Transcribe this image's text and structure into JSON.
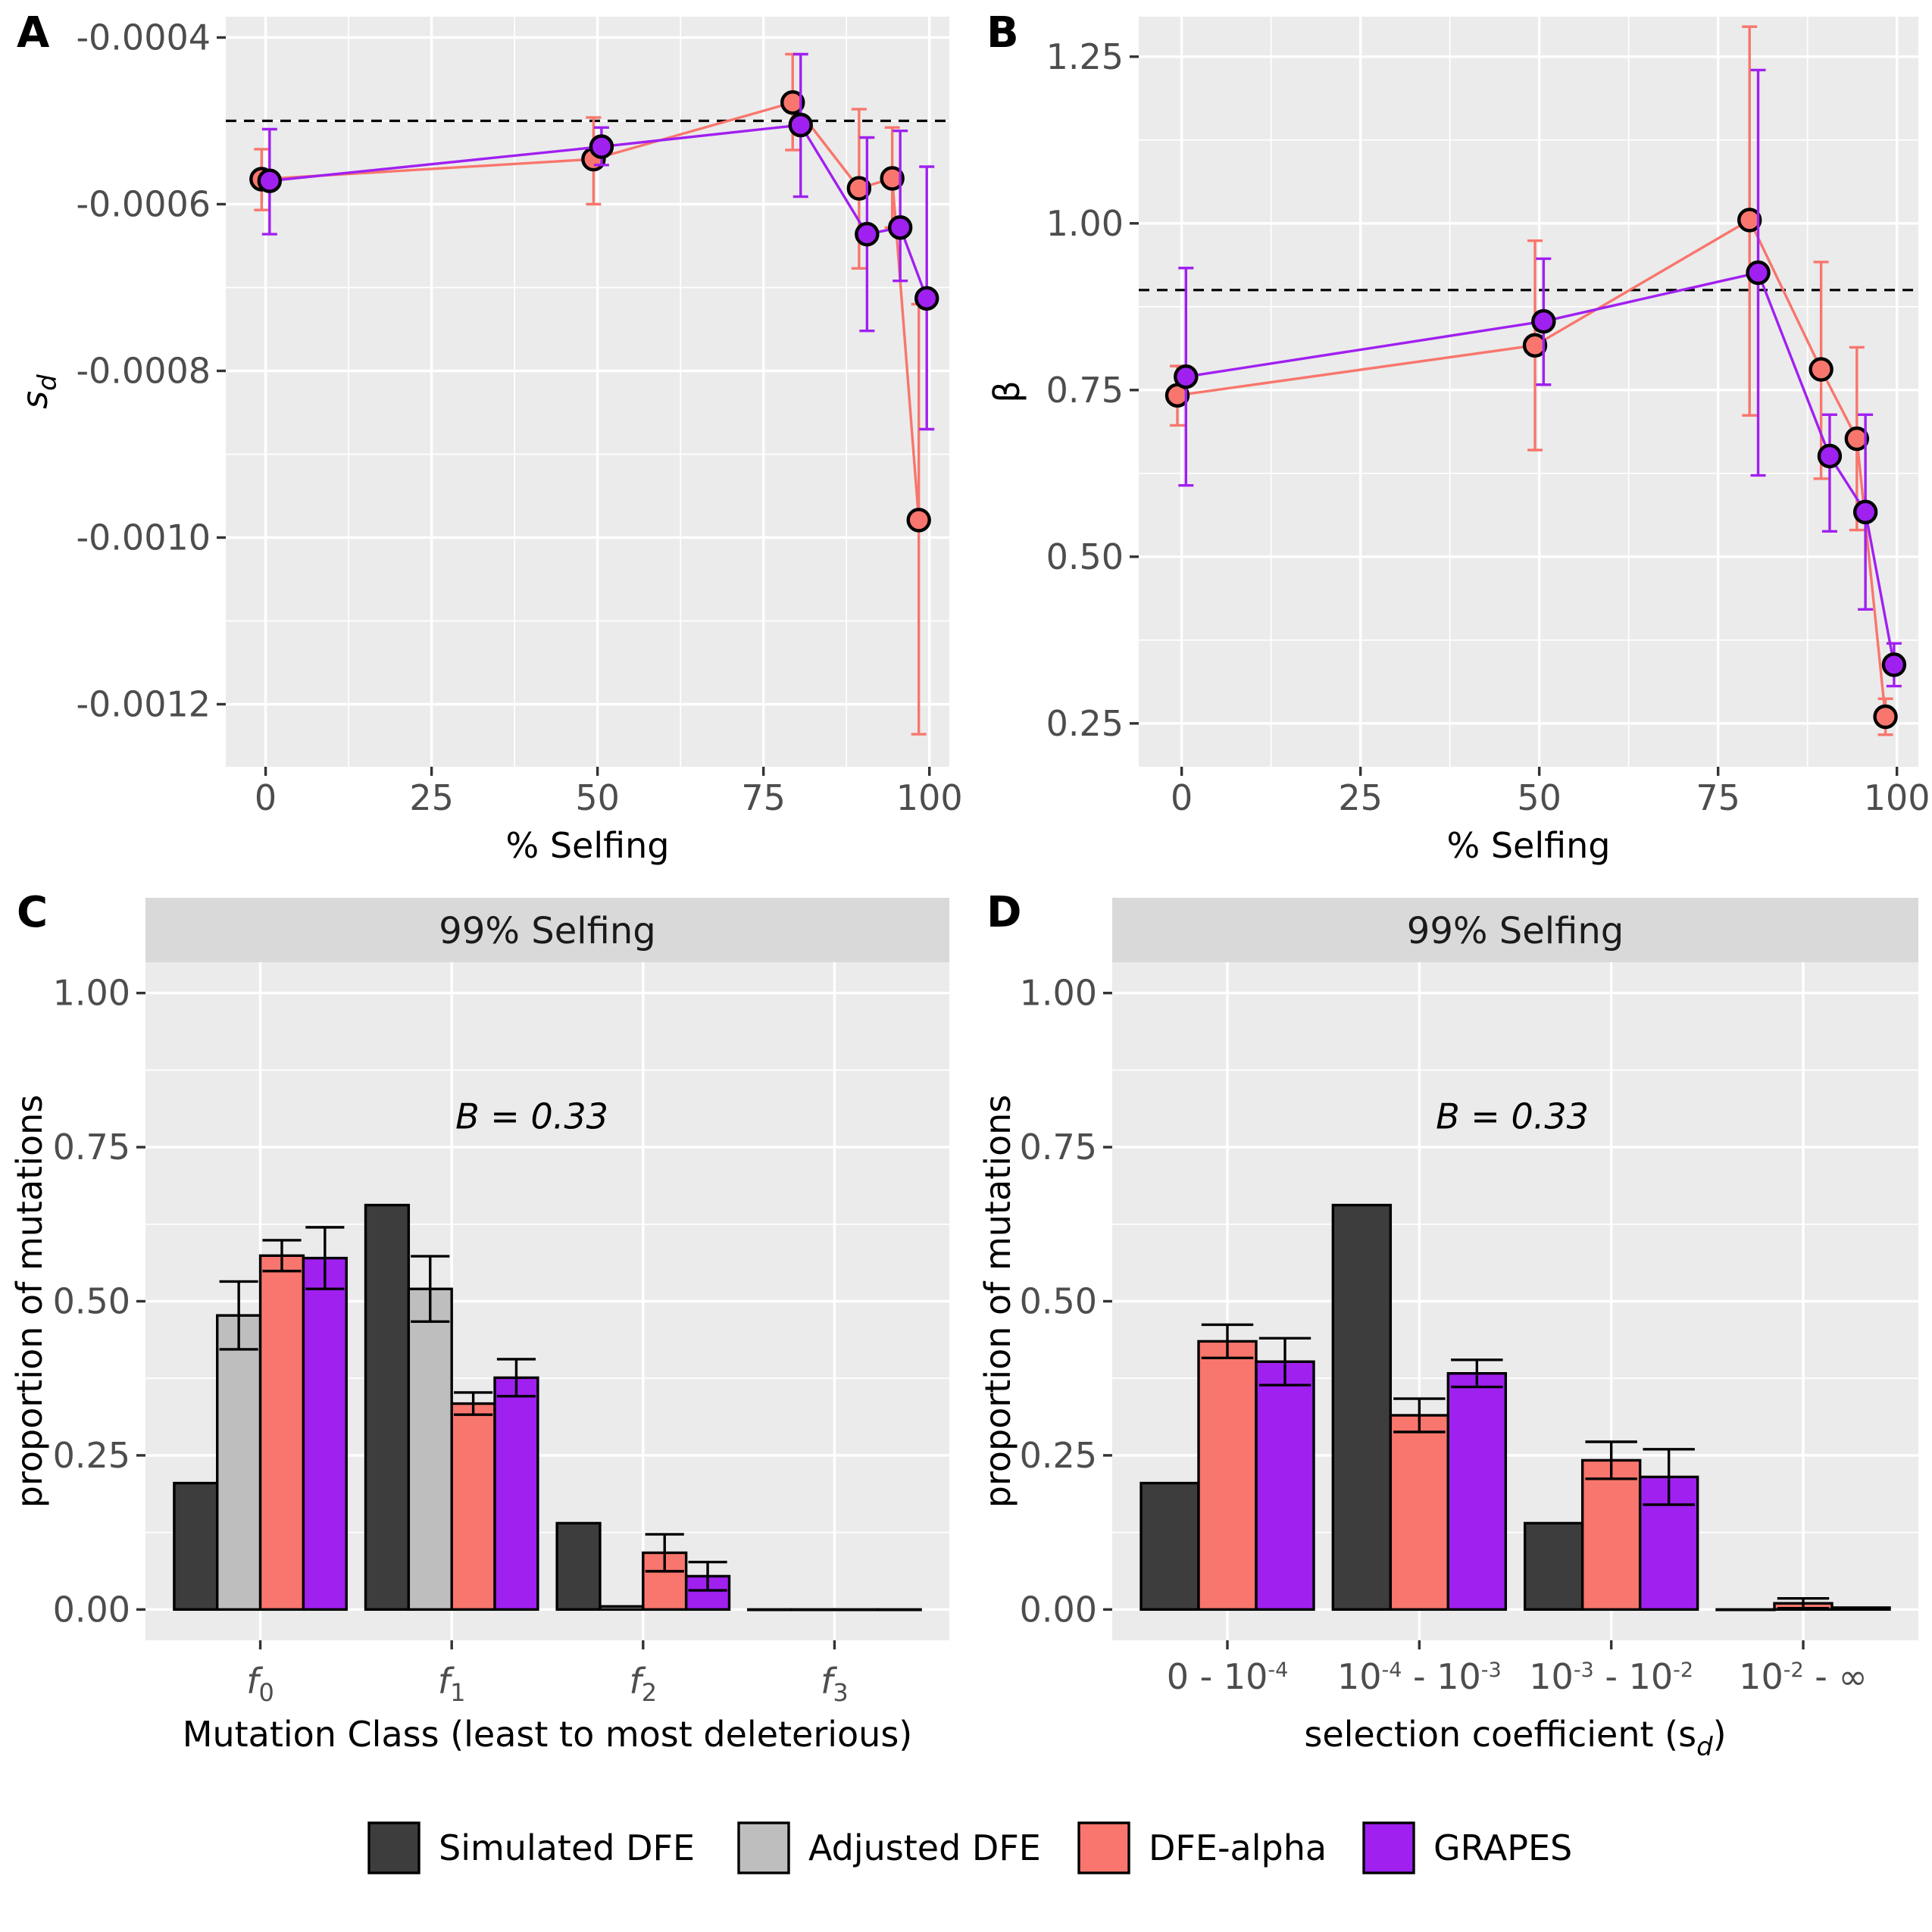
{
  "colors": {
    "Simulated DFE": "#3d3d3d",
    "Adjusted DFE": "#bebebe",
    "DFE-alpha": "#f8766d",
    "GRAPES": "#a020f0"
  },
  "legend": {
    "position": "bottom",
    "items": [
      "Simulated DFE",
      "Adjusted DFE",
      "DFE-alpha",
      "GRAPES"
    ]
  },
  "chart_data": [
    {
      "id": "A",
      "tag": "A",
      "type": "line",
      "xlabel": "% Selfing",
      "ylabel_main": "s",
      "ylabel_sub": "d",
      "xlim": [
        -6,
        103
      ],
      "ylim": [
        -0.001275,
        -0.000375
      ],
      "xticks": [
        0,
        25,
        50,
        75,
        100
      ],
      "xtick_labels": [
        "0",
        "25",
        "50",
        "75",
        "100"
      ],
      "yticks": [
        -0.0012,
        -0.001,
        -0.0008,
        -0.0006,
        -0.0004
      ],
      "ytick_labels": [
        "-0.0012",
        "-0.0010",
        "-0.0008",
        "-0.0006",
        "-0.0004"
      ],
      "hline": -0.0005,
      "series": [
        {
          "name": "DFE-alpha",
          "x": [
            0,
            50,
            80,
            90,
            95,
            99
          ],
          "y": [
            -0.00057,
            -0.000546,
            -0.000478,
            -0.000581,
            -0.000569,
            -0.000979
          ],
          "ylo": [
            -0.000607,
            -0.0006,
            -0.000535,
            -0.000677,
            -0.000628,
            -0.001236
          ],
          "yhi": [
            -0.000534,
            -0.000496,
            -0.00042,
            -0.000486,
            -0.000508,
            -0.00072
          ]
        },
        {
          "name": "GRAPES",
          "x": [
            0,
            50,
            80,
            90,
            95,
            99
          ],
          "y": [
            -0.000572,
            -0.000531,
            -0.000505,
            -0.000636,
            -0.000628,
            -0.000713
          ],
          "ylo": [
            -0.000636,
            -0.000553,
            -0.000591,
            -0.000752,
            -0.000692,
            -0.00087
          ],
          "yhi": [
            -0.00051,
            -0.000508,
            -0.00042,
            -0.00052,
            -0.000512,
            -0.000555
          ]
        }
      ]
    },
    {
      "id": "B",
      "tag": "B",
      "type": "line",
      "xlabel": "% Selfing",
      "ylabel_main": "β",
      "ylabel_sub": "",
      "xlim": [
        -6,
        103
      ],
      "ylim": [
        0.185,
        1.31
      ],
      "xticks": [
        0,
        25,
        50,
        75,
        100
      ],
      "xtick_labels": [
        "0",
        "25",
        "50",
        "75",
        "100"
      ],
      "yticks": [
        0.25,
        0.5,
        0.75,
        1.0,
        1.25
      ],
      "ytick_labels": [
        "0.25",
        "0.50",
        "0.75",
        "1.00",
        "1.25"
      ],
      "hline": 0.9,
      "series": [
        {
          "name": "DFE-alpha",
          "x": [
            0,
            50,
            80,
            90,
            95,
            99
          ],
          "y": [
            0.742,
            0.817,
            1.005,
            0.781,
            0.677,
            0.26
          ],
          "ylo": [
            0.697,
            0.66,
            0.712,
            0.617,
            0.54,
            0.233
          ],
          "yhi": [
            0.786,
            0.974,
            1.295,
            0.942,
            0.814,
            0.287
          ]
        },
        {
          "name": "GRAPES",
          "x": [
            0,
            50,
            80,
            90,
            95,
            99
          ],
          "y": [
            0.77,
            0.853,
            0.926,
            0.651,
            0.567,
            0.338
          ],
          "ylo": [
            0.607,
            0.758,
            0.622,
            0.538,
            0.421,
            0.306
          ],
          "yhi": [
            0.933,
            0.947,
            1.23,
            0.713,
            0.713,
            0.37
          ]
        }
      ]
    },
    {
      "id": "C",
      "tag": "C",
      "type": "bar",
      "strip": "99% Selfing",
      "annotation": "B =  0.33",
      "xlabel": "Mutation Class (least to most deleterious)",
      "ylabel": "proportion of mutations",
      "ylim": [
        -0.05,
        1.05
      ],
      "yticks": [
        0,
        0.25,
        0.5,
        0.75,
        1.0
      ],
      "ytick_labels": [
        "0.00",
        "0.25",
        "0.50",
        "0.75",
        "1.00"
      ],
      "categories": [
        {
          "main": "f",
          "sub": "0"
        },
        {
          "main": "f",
          "sub": "1"
        },
        {
          "main": "f",
          "sub": "2"
        },
        {
          "main": "f",
          "sub": "3"
        }
      ],
      "series": [
        {
          "name": "Simulated DFE",
          "values": [
            0.205,
            0.656,
            0.14,
            0.0
          ],
          "err": [
            null,
            null,
            null,
            null
          ]
        },
        {
          "name": "Adjusted DFE",
          "values": [
            0.477,
            0.52,
            0.005,
            0.0
          ],
          "err": [
            0.055,
            0.053,
            null,
            null
          ]
        },
        {
          "name": "DFE-alpha",
          "values": [
            0.574,
            0.334,
            0.092,
            0.0
          ],
          "err": [
            0.025,
            0.018,
            0.03,
            null
          ]
        },
        {
          "name": "GRAPES",
          "values": [
            0.57,
            0.376,
            0.054,
            0.0
          ],
          "err": [
            0.05,
            0.03,
            0.023,
            null
          ]
        }
      ]
    },
    {
      "id": "D",
      "tag": "D",
      "type": "bar",
      "strip": "99% Selfing",
      "annotation": "B =  0.33",
      "xlabel_main": "selection coefficient  (s",
      "xlabel_sub": "d",
      "xlabel_end": ")",
      "ylabel": "proportion of mutations",
      "ylim": [
        -0.05,
        1.05
      ],
      "yticks": [
        0,
        0.25,
        0.5,
        0.75,
        1.0
      ],
      "ytick_labels": [
        "0.00",
        "0.25",
        "0.50",
        "0.75",
        "1.00"
      ],
      "categories": [
        {
          "parts": [
            [
              "0 - 10",
              ""
            ],
            [
              "-4",
              "sup"
            ]
          ]
        },
        {
          "parts": [
            [
              "10",
              ""
            ],
            [
              "-4",
              "sup"
            ],
            [
              " - 10",
              ""
            ],
            [
              "-3",
              "sup"
            ]
          ]
        },
        {
          "parts": [
            [
              "10",
              ""
            ],
            [
              "-3",
              "sup"
            ],
            [
              " - 10",
              ""
            ],
            [
              "-2",
              "sup"
            ]
          ]
        },
        {
          "parts": [
            [
              "10",
              ""
            ],
            [
              "-2",
              "sup"
            ],
            [
              " - ∞",
              ""
            ]
          ]
        }
      ],
      "series": [
        {
          "name": "Simulated DFE",
          "values": [
            0.205,
            0.656,
            0.14,
            0.0
          ],
          "err": [
            null,
            null,
            null,
            null
          ]
        },
        {
          "name": "DFE-alpha",
          "values": [
            0.435,
            0.315,
            0.242,
            0.01
          ],
          "err": [
            0.027,
            0.027,
            0.03,
            0.008
          ]
        },
        {
          "name": "GRAPES",
          "values": [
            0.402,
            0.383,
            0.215,
            0.003
          ],
          "err": [
            0.038,
            0.022,
            0.045,
            null
          ]
        }
      ]
    }
  ]
}
